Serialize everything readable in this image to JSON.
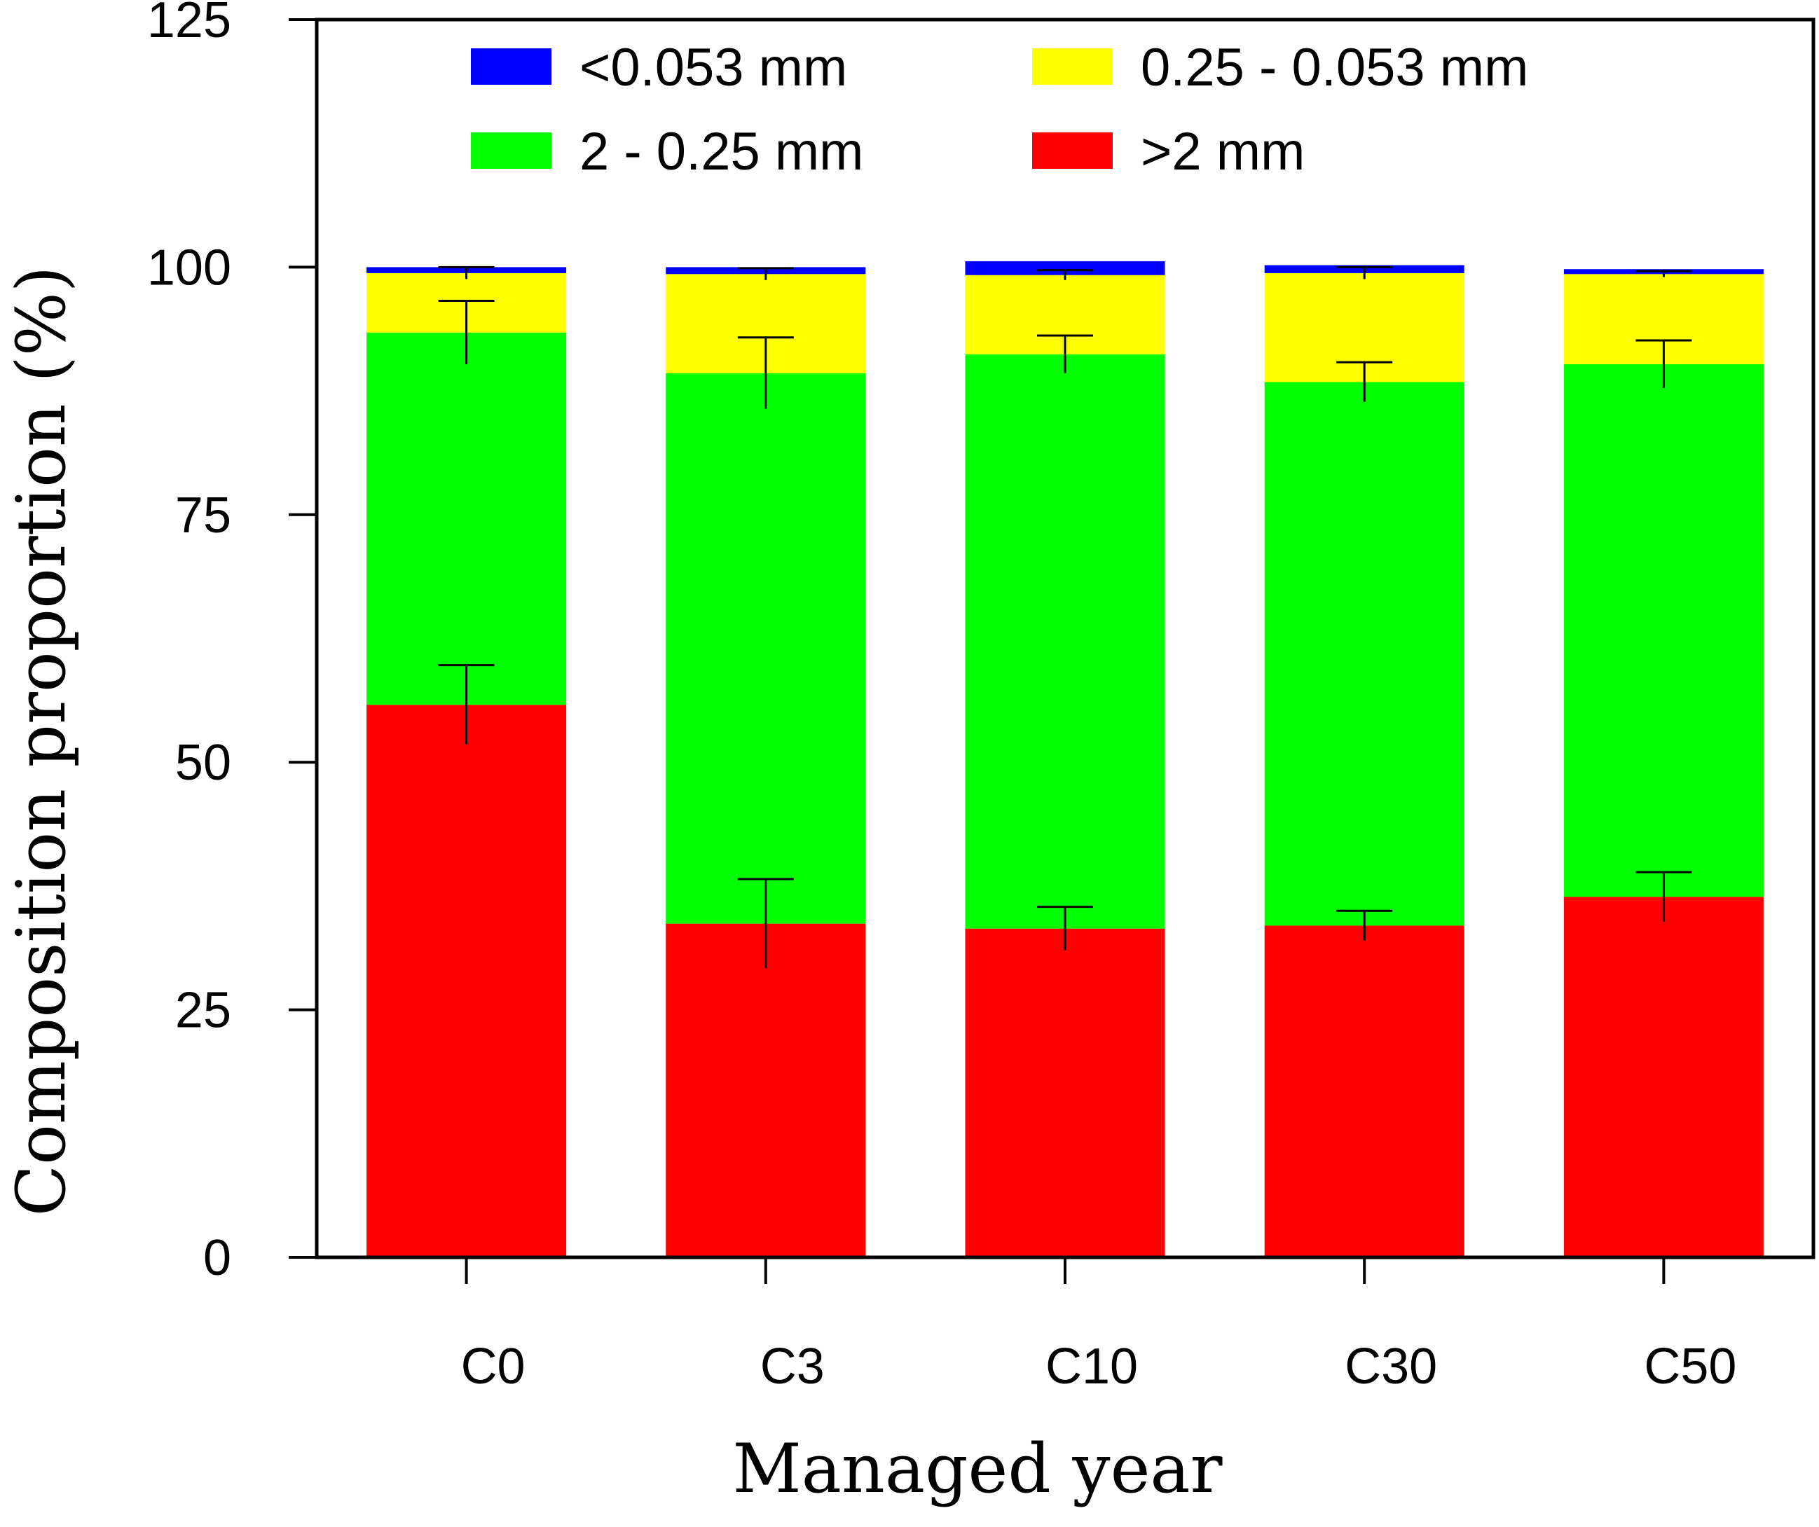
{
  "chart_data": {
    "type": "bar",
    "stacked": true,
    "categories": [
      "C0",
      "C3",
      "C10",
      "C30",
      "C50"
    ],
    "series": [
      {
        "name": ">2 mm",
        "color": "#ff0000",
        "values": [
          55.8,
          33.7,
          33.2,
          33.5,
          36.4
        ],
        "errors": [
          4.0,
          4.5,
          2.2,
          1.5,
          2.5
        ]
      },
      {
        "name": "2 - 0.25 mm",
        "color": "#00ff00",
        "values": [
          37.6,
          55.6,
          58.0,
          54.9,
          53.8
        ],
        "errors": [
          3.2,
          3.6,
          1.9,
          2.0,
          2.4
        ]
      },
      {
        "name": "0.25 - 0.053 mm",
        "color": "#ffff00",
        "values": [
          6.0,
          10.0,
          8.0,
          11.0,
          9.1
        ],
        "errors": [
          0.6,
          0.6,
          0.5,
          0.6,
          0.3
        ]
      },
      {
        "name": "<0.053 mm",
        "color": "#0000ff",
        "values": [
          0.6,
          0.7,
          1.4,
          0.8,
          0.5
        ],
        "errors": [
          0,
          0,
          0,
          0,
          0
        ]
      }
    ],
    "legend_order": [
      "<0.053 mm",
      "0.25 - 0.053 mm",
      "2 - 0.25 mm",
      ">2 mm"
    ],
    "xlabel": "Managed year",
    "ylabel": "Composition proportion (%)",
    "ylim": [
      0,
      125
    ],
    "yticks": [
      "0",
      "25",
      "50",
      "75",
      "100",
      "125"
    ],
    "grid": false,
    "legend_position": "top"
  }
}
